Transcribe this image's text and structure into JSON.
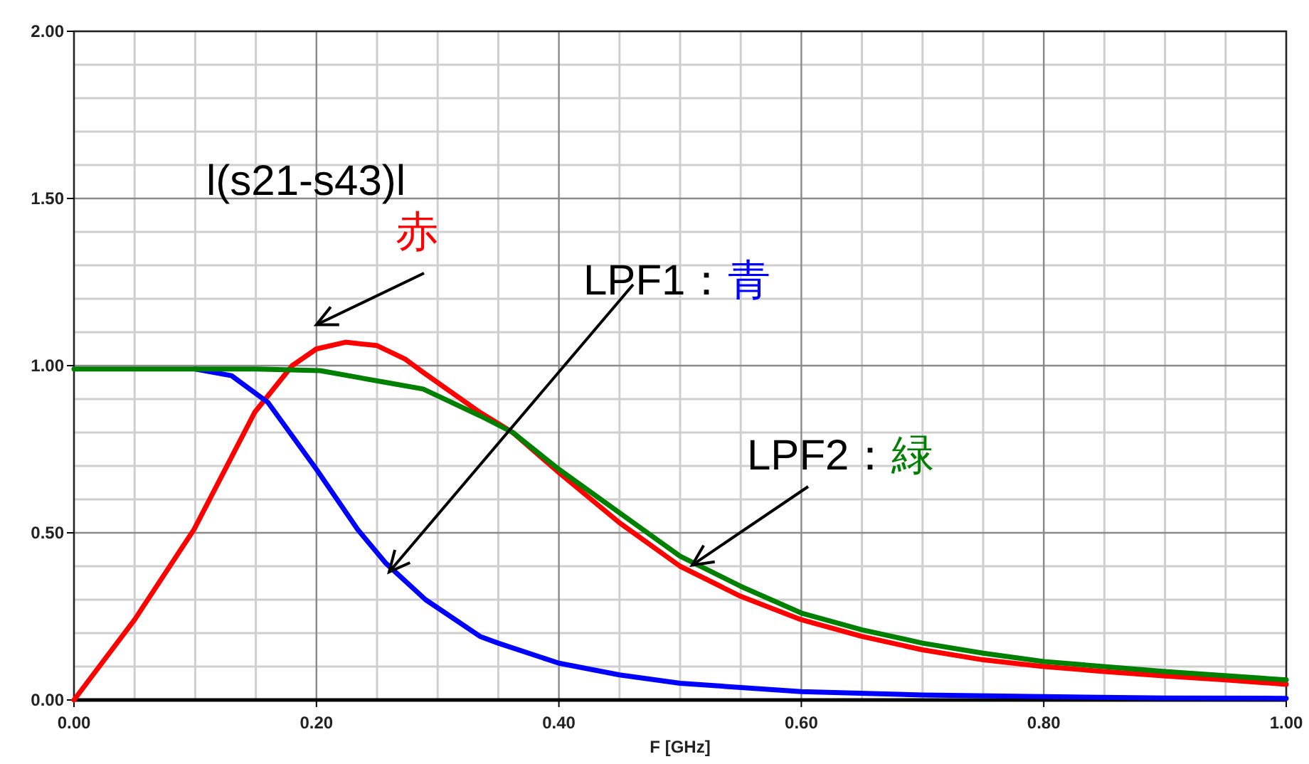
{
  "chart_data": {
    "type": "line",
    "xlabel": "F [GHz]",
    "xlim": [
      0,
      1
    ],
    "ylim": [
      0,
      2
    ],
    "xticks": [
      {
        "value": 0,
        "label": "0.00"
      },
      {
        "value": 0.2,
        "label": "0.20"
      },
      {
        "value": 0.4,
        "label": "0.40"
      },
      {
        "value": 0.6,
        "label": "0.60"
      },
      {
        "value": 0.8,
        "label": "0.80"
      },
      {
        "value": 1,
        "label": "1.00"
      }
    ],
    "yticks": [
      {
        "value": 0,
        "label": "0.00"
      },
      {
        "value": 0.5,
        "label": "0.50"
      },
      {
        "value": 1,
        "label": "1.00"
      },
      {
        "value": 1.5,
        "label": "1.50"
      },
      {
        "value": 2,
        "label": "2.00"
      }
    ],
    "grid": true,
    "marker": "none",
    "line_style": "solid",
    "series": [
      {
        "name": "l(s21-s43)l 赤",
        "color": "#ff0000",
        "x": [
          0,
          0.05,
          0.099,
          0.149,
          0.18,
          0.2,
          0.224,
          0.25,
          0.273,
          0.288,
          0.335,
          0.362,
          0.4,
          0.45,
          0.5,
          0.55,
          0.6,
          0.65,
          0.7,
          0.75,
          0.8,
          0.85,
          0.9,
          0.95,
          1.0
        ],
        "values": [
          0,
          0.24,
          0.51,
          0.86,
          1.0,
          1.05,
          1.07,
          1.06,
          1.02,
          0.98,
          0.86,
          0.8,
          0.68,
          0.53,
          0.4,
          0.31,
          0.24,
          0.19,
          0.15,
          0.12,
          0.1,
          0.085,
          0.072,
          0.06,
          0.047
        ]
      },
      {
        "name": "LPF1：青",
        "color": "#0000ff",
        "x": [
          0.1,
          0.13,
          0.16,
          0.2,
          0.234,
          0.257,
          0.29,
          0.335,
          0.35,
          0.4,
          0.45,
          0.5,
          0.6,
          0.7,
          0.8,
          0.9,
          1.0
        ],
        "values": [
          0.99,
          0.97,
          0.89,
          0.69,
          0.51,
          0.41,
          0.3,
          0.19,
          0.17,
          0.11,
          0.075,
          0.05,
          0.025,
          0.015,
          0.01,
          0.006,
          0.005
        ]
      },
      {
        "name": "LPF2：緑",
        "color": "#008000",
        "x": [
          0,
          0.15,
          0.203,
          0.257,
          0.288,
          0.335,
          0.362,
          0.4,
          0.45,
          0.5,
          0.55,
          0.6,
          0.65,
          0.7,
          0.75,
          0.8,
          0.9,
          1.0
        ],
        "values": [
          0.99,
          0.99,
          0.985,
          0.95,
          0.93,
          0.85,
          0.8,
          0.69,
          0.56,
          0.43,
          0.34,
          0.26,
          0.21,
          0.17,
          0.14,
          0.115,
          0.085,
          0.06
        ]
      }
    ]
  }
}
